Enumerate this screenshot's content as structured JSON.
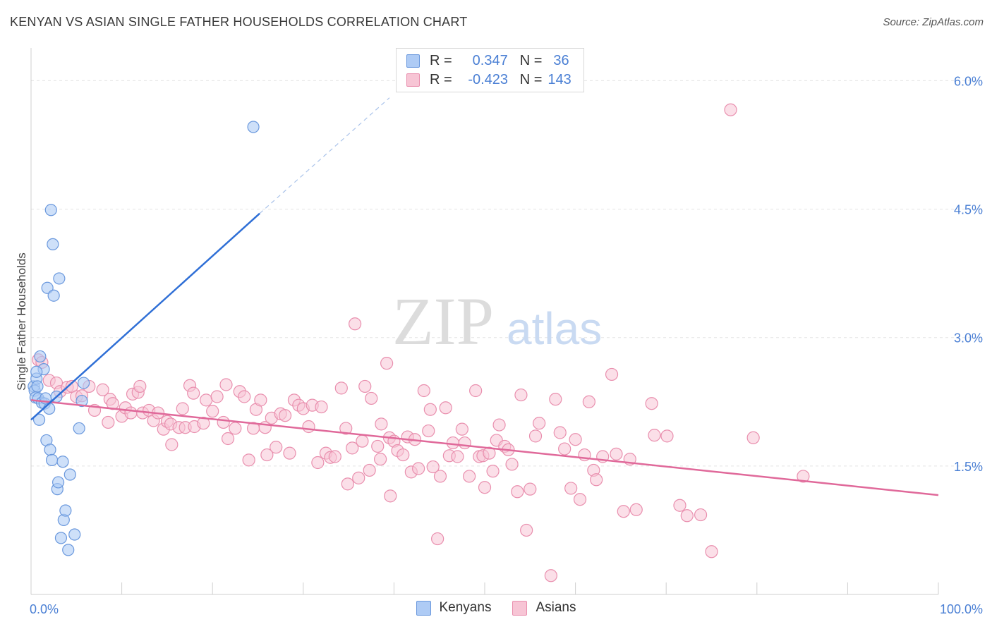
{
  "title": "KENYAN VS ASIAN SINGLE FATHER HOUSEHOLDS CORRELATION CHART",
  "source": "Source: ZipAtlas.com",
  "watermark": {
    "zip": "ZIP",
    "atlas": "atlas"
  },
  "legend": {
    "rows": [
      {
        "r_label": "R =",
        "r_value": "0.347",
        "n_label": "N =",
        "n_value": "36"
      },
      {
        "r_label": "R =",
        "r_value": "-0.423",
        "n_label": "N =",
        "n_value": "143"
      }
    ]
  },
  "bottom_legend": {
    "kenyans": "Kenyans",
    "asians": "Asians"
  },
  "colors": {
    "kenyan_fill": "#aecbf5",
    "kenyan_stroke": "#6a98dd",
    "kenyan_line": "#2f6fd6",
    "asian_fill": "#f7c5d5",
    "asian_stroke": "#e98fae",
    "asian_line": "#e0699a",
    "tick_label": "#4a7fd4"
  },
  "chart_data": {
    "type": "scatter",
    "title": "KENYAN VS ASIAN SINGLE FATHER HOUSEHOLDS CORRELATION CHART",
    "xlabel": "",
    "ylabel": "Single Father Households",
    "xlim": [
      0,
      100
    ],
    "ylim": [
      0,
      6.3
    ],
    "x_tick_labels": [
      "0.0%",
      "100.0%"
    ],
    "y_ticks": [
      1.5,
      3.0,
      4.5,
      6.0
    ],
    "y_tick_labels": [
      "1.5%",
      "3.0%",
      "4.5%",
      "6.0%"
    ],
    "grid": true,
    "legend_position": "top-center",
    "series": [
      {
        "name": "Kenyans",
        "r": 0.347,
        "n": 36,
        "trend": {
          "x": [
            0.0,
            25.2
          ],
          "y": [
            2.04,
            4.45
          ]
        },
        "trend_extension": {
          "x": [
            25.2,
            39.5
          ],
          "y": [
            4.45,
            5.8
          ]
        },
        "points": [
          [
            0.3,
            2.43
          ],
          [
            0.4,
            2.38
          ],
          [
            0.5,
            2.3
          ],
          [
            0.6,
            2.52
          ],
          [
            0.7,
            2.43
          ],
          [
            0.8,
            2.29
          ],
          [
            0.9,
            2.04
          ],
          [
            1.0,
            2.78
          ],
          [
            1.2,
            2.24
          ],
          [
            1.4,
            2.63
          ],
          [
            1.5,
            2.23
          ],
          [
            1.6,
            2.29
          ],
          [
            1.7,
            1.8
          ],
          [
            1.8,
            3.58
          ],
          [
            2.0,
            2.17
          ],
          [
            2.1,
            1.69
          ],
          [
            2.2,
            4.49
          ],
          [
            2.3,
            1.57
          ],
          [
            2.4,
            4.09
          ],
          [
            2.5,
            3.49
          ],
          [
            2.8,
            2.31
          ],
          [
            2.9,
            1.23
          ],
          [
            3.0,
            1.31
          ],
          [
            3.1,
            3.69
          ],
          [
            3.3,
            0.66
          ],
          [
            3.5,
            1.55
          ],
          [
            3.6,
            0.87
          ],
          [
            3.8,
            0.98
          ],
          [
            4.1,
            0.52
          ],
          [
            4.3,
            1.4
          ],
          [
            4.8,
            0.7
          ],
          [
            5.3,
            1.94
          ],
          [
            5.6,
            2.26
          ],
          [
            5.8,
            2.47
          ],
          [
            24.5,
            5.46
          ],
          [
            0.6,
            2.6
          ]
        ]
      },
      {
        "name": "Asians",
        "r": -0.423,
        "n": 143,
        "trend": {
          "x": [
            0.0,
            100.0
          ],
          "y": [
            2.27,
            1.16
          ]
        },
        "points": [
          [
            0.8,
            2.74
          ],
          [
            1.2,
            2.71
          ],
          [
            2.0,
            2.5
          ],
          [
            2.8,
            2.47
          ],
          [
            3.2,
            2.37
          ],
          [
            4.0,
            2.42
          ],
          [
            4.5,
            2.43
          ],
          [
            5.0,
            2.31
          ],
          [
            5.6,
            2.32
          ],
          [
            6.4,
            2.43
          ],
          [
            7.0,
            2.15
          ],
          [
            7.9,
            2.39
          ],
          [
            8.5,
            2.01
          ],
          [
            8.7,
            2.28
          ],
          [
            9.0,
            2.23
          ],
          [
            10.0,
            2.08
          ],
          [
            10.4,
            2.18
          ],
          [
            11.0,
            2.12
          ],
          [
            11.2,
            2.34
          ],
          [
            11.8,
            2.36
          ],
          [
            12.0,
            2.43
          ],
          [
            12.3,
            2.12
          ],
          [
            13.0,
            2.15
          ],
          [
            13.5,
            2.03
          ],
          [
            14.0,
            2.12
          ],
          [
            14.6,
            1.93
          ],
          [
            15.0,
            2.02
          ],
          [
            15.4,
            1.99
          ],
          [
            15.5,
            1.75
          ],
          [
            16.3,
            1.95
          ],
          [
            16.7,
            2.17
          ],
          [
            17.0,
            1.95
          ],
          [
            17.5,
            2.44
          ],
          [
            17.9,
            2.35
          ],
          [
            18.0,
            1.96
          ],
          [
            19.0,
            2.0
          ],
          [
            19.3,
            2.27
          ],
          [
            20.0,
            2.14
          ],
          [
            20.5,
            2.31
          ],
          [
            21.2,
            2.01
          ],
          [
            21.5,
            2.45
          ],
          [
            21.7,
            1.82
          ],
          [
            22.5,
            1.94
          ],
          [
            23.0,
            2.37
          ],
          [
            23.5,
            2.31
          ],
          [
            24.0,
            1.57
          ],
          [
            24.5,
            1.94
          ],
          [
            24.8,
            2.16
          ],
          [
            25.3,
            2.27
          ],
          [
            25.8,
            1.95
          ],
          [
            26.0,
            1.63
          ],
          [
            26.5,
            2.06
          ],
          [
            27.0,
            1.72
          ],
          [
            27.5,
            2.11
          ],
          [
            28.0,
            2.09
          ],
          [
            28.5,
            1.65
          ],
          [
            29.0,
            2.27
          ],
          [
            29.5,
            2.21
          ],
          [
            30.0,
            2.17
          ],
          [
            30.6,
            1.96
          ],
          [
            31.0,
            2.21
          ],
          [
            31.6,
            1.54
          ],
          [
            32.0,
            2.19
          ],
          [
            32.5,
            1.65
          ],
          [
            33.0,
            1.6
          ],
          [
            33.5,
            1.61
          ],
          [
            34.2,
            2.41
          ],
          [
            34.7,
            1.94
          ],
          [
            34.9,
            1.29
          ],
          [
            35.4,
            1.71
          ],
          [
            35.7,
            3.16
          ],
          [
            36.1,
            1.36
          ],
          [
            36.5,
            1.79
          ],
          [
            36.8,
            2.43
          ],
          [
            37.3,
            1.45
          ],
          [
            37.5,
            2.29
          ],
          [
            38.2,
            1.73
          ],
          [
            38.5,
            1.58
          ],
          [
            38.6,
            1.99
          ],
          [
            39.2,
            2.7
          ],
          [
            39.5,
            1.83
          ],
          [
            39.6,
            1.15
          ],
          [
            40.0,
            1.79
          ],
          [
            40.4,
            1.68
          ],
          [
            41.0,
            1.63
          ],
          [
            41.5,
            1.84
          ],
          [
            41.9,
            1.43
          ],
          [
            42.3,
            1.81
          ],
          [
            42.7,
            1.47
          ],
          [
            43.3,
            2.38
          ],
          [
            43.8,
            1.91
          ],
          [
            44.0,
            2.16
          ],
          [
            44.3,
            1.49
          ],
          [
            44.8,
            0.65
          ],
          [
            45.1,
            1.38
          ],
          [
            45.7,
            2.18
          ],
          [
            46.1,
            1.62
          ],
          [
            46.5,
            1.77
          ],
          [
            47.0,
            1.61
          ],
          [
            47.5,
            1.93
          ],
          [
            47.8,
            1.77
          ],
          [
            48.3,
            1.38
          ],
          [
            49.0,
            2.38
          ],
          [
            49.4,
            1.61
          ],
          [
            49.8,
            1.62
          ],
          [
            50.0,
            1.25
          ],
          [
            50.5,
            1.65
          ],
          [
            50.9,
            1.44
          ],
          [
            51.3,
            1.8
          ],
          [
            51.6,
            1.98
          ],
          [
            52.2,
            1.73
          ],
          [
            52.6,
            1.69
          ],
          [
            53.0,
            1.52
          ],
          [
            53.6,
            1.2
          ],
          [
            54.0,
            2.33
          ],
          [
            54.6,
            0.75
          ],
          [
            55.0,
            1.23
          ],
          [
            55.6,
            1.85
          ],
          [
            56.0,
            2.0
          ],
          [
            57.3,
            0.22
          ],
          [
            57.8,
            2.28
          ],
          [
            58.3,
            1.89
          ],
          [
            58.8,
            1.7
          ],
          [
            59.5,
            1.24
          ],
          [
            60.0,
            1.81
          ],
          [
            60.5,
            1.11
          ],
          [
            61.0,
            1.63
          ],
          [
            61.5,
            2.25
          ],
          [
            62.0,
            1.45
          ],
          [
            62.3,
            1.34
          ],
          [
            63.0,
            1.61
          ],
          [
            64.0,
            2.57
          ],
          [
            64.5,
            1.64
          ],
          [
            65.3,
            0.97
          ],
          [
            66.0,
            1.58
          ],
          [
            66.7,
            0.99
          ],
          [
            68.4,
            2.23
          ],
          [
            68.7,
            1.86
          ],
          [
            70.1,
            1.85
          ],
          [
            71.5,
            1.04
          ],
          [
            72.3,
            0.92
          ],
          [
            73.8,
            0.93
          ],
          [
            75.0,
            0.5
          ],
          [
            77.1,
            5.66
          ],
          [
            79.6,
            1.83
          ],
          [
            85.1,
            1.38
          ]
        ]
      }
    ]
  }
}
